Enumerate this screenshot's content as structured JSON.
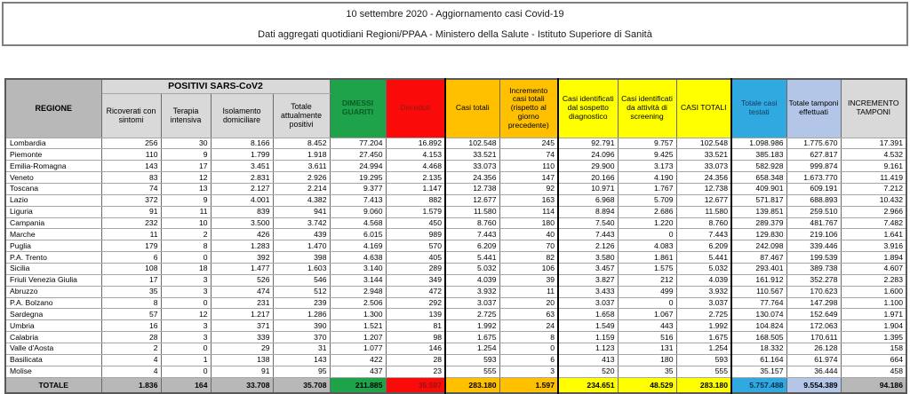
{
  "title": {
    "line1": "10 settembre 2020 - Aggiornamento casi Covid-19",
    "line2": "Dati aggregati quotidiani Regioni/PPAA - Ministero della Salute - Istituto Superiore di Sanità"
  },
  "table": {
    "region_header": "REGIONE",
    "group_header": "POSITIVI SARS-CoV2",
    "sub_headers": [
      "Ricoverati con sintomi",
      "Terapia intensiva",
      "Isolamento domiciliare",
      "Totale attualmente positivi"
    ],
    "col_headers": [
      "DIMESSI GUARITI",
      "Deceduti",
      "Casi totali",
      "Incremento casi totali (rispetto al giorno precedente)",
      "Casi identificati dal sospetto diagnostico",
      "Casi identificati da attività di screening",
      "CASI TOTALI",
      "Totale casi testati",
      "Totale tamponi effettuati",
      "INCREMENTO TAMPONI"
    ],
    "rows": [
      {
        "region": "Lombardia",
        "values": [
          "256",
          "30",
          "8.166",
          "8.452",
          "77.204",
          "16.892",
          "102.548",
          "245",
          "92.791",
          "9.757",
          "102.548",
          "1.098.986",
          "1.775.670",
          "17.391"
        ]
      },
      {
        "region": "Piemonte",
        "values": [
          "110",
          "9",
          "1.799",
          "1.918",
          "27.450",
          "4.153",
          "33.521",
          "74",
          "24.096",
          "9.425",
          "33.521",
          "385.183",
          "627.817",
          "4.532"
        ]
      },
      {
        "region": "Emilia-Romagna",
        "values": [
          "143",
          "17",
          "3.451",
          "3.611",
          "24.994",
          "4.468",
          "33.073",
          "110",
          "29.900",
          "3.173",
          "33.073",
          "582.928",
          "999.874",
          "9.161"
        ]
      },
      {
        "region": "Veneto",
        "values": [
          "83",
          "12",
          "2.831",
          "2.926",
          "19.295",
          "2.135",
          "24.356",
          "147",
          "20.166",
          "4.190",
          "24.356",
          "658.348",
          "1.673.770",
          "11.419"
        ]
      },
      {
        "region": "Toscana",
        "values": [
          "74",
          "13",
          "2.127",
          "2.214",
          "9.377",
          "1.147",
          "12.738",
          "92",
          "10.971",
          "1.767",
          "12.738",
          "409.901",
          "609.191",
          "7.212"
        ]
      },
      {
        "region": "Lazio",
        "values": [
          "372",
          "9",
          "4.001",
          "4.382",
          "7.413",
          "882",
          "12.677",
          "163",
          "6.968",
          "5.709",
          "12.677",
          "571.817",
          "688.893",
          "10.432"
        ]
      },
      {
        "region": "Liguria",
        "values": [
          "91",
          "11",
          "839",
          "941",
          "9.060",
          "1.579",
          "11.580",
          "114",
          "8.894",
          "2.686",
          "11.580",
          "139.851",
          "259.510",
          "2.966"
        ]
      },
      {
        "region": "Campania",
        "values": [
          "232",
          "10",
          "3.500",
          "3.742",
          "4.568",
          "450",
          "8.760",
          "180",
          "7.540",
          "1.220",
          "8.760",
          "289.379",
          "481.767",
          "7.482"
        ]
      },
      {
        "region": "Marche",
        "values": [
          "11",
          "2",
          "426",
          "439",
          "6.015",
          "989",
          "7.443",
          "40",
          "7.443",
          "0",
          "7.443",
          "129.830",
          "219.106",
          "1.641"
        ]
      },
      {
        "region": "Puglia",
        "values": [
          "179",
          "8",
          "1.283",
          "1.470",
          "4.169",
          "570",
          "6.209",
          "70",
          "2.126",
          "4.083",
          "6.209",
          "242.098",
          "339.446",
          "3.916"
        ]
      },
      {
        "region": "P.A. Trento",
        "values": [
          "6",
          "0",
          "392",
          "398",
          "4.638",
          "405",
          "5.441",
          "82",
          "3.580",
          "1.861",
          "5.441",
          "87.467",
          "199.539",
          "1.894"
        ]
      },
      {
        "region": "Sicilia",
        "values": [
          "108",
          "18",
          "1.477",
          "1.603",
          "3.140",
          "289",
          "5.032",
          "106",
          "3.457",
          "1.575",
          "5.032",
          "293.401",
          "389.738",
          "4.607"
        ]
      },
      {
        "region": "Friuli Venezia Giulia",
        "values": [
          "17",
          "3",
          "526",
          "546",
          "3.144",
          "349",
          "4.039",
          "39",
          "3.827",
          "212",
          "4.039",
          "161.912",
          "352.278",
          "2.283"
        ]
      },
      {
        "region": "Abruzzo",
        "values": [
          "35",
          "3",
          "474",
          "512",
          "2.948",
          "472",
          "3.932",
          "11",
          "3.433",
          "499",
          "3.932",
          "110.567",
          "170.623",
          "1.600"
        ]
      },
      {
        "region": "P.A. Bolzano",
        "values": [
          "8",
          "0",
          "231",
          "239",
          "2.506",
          "292",
          "3.037",
          "20",
          "3.037",
          "0",
          "3.037",
          "77.764",
          "147.298",
          "1.100"
        ]
      },
      {
        "region": "Sardegna",
        "values": [
          "57",
          "12",
          "1.217",
          "1.286",
          "1.300",
          "139",
          "2.725",
          "63",
          "1.658",
          "1.067",
          "2.725",
          "130.074",
          "152.649",
          "1.971"
        ]
      },
      {
        "region": "Umbria",
        "values": [
          "16",
          "3",
          "371",
          "390",
          "1.521",
          "81",
          "1.992",
          "24",
          "1.549",
          "443",
          "1.992",
          "104.824",
          "172.063",
          "1.904"
        ]
      },
      {
        "region": "Calabria",
        "values": [
          "28",
          "3",
          "339",
          "370",
          "1.207",
          "98",
          "1.675",
          "8",
          "1.159",
          "516",
          "1.675",
          "168.505",
          "170.611",
          "1.395"
        ]
      },
      {
        "region": "Valle d'Aosta",
        "values": [
          "2",
          "0",
          "29",
          "31",
          "1.077",
          "146",
          "1.254",
          "0",
          "1.123",
          "131",
          "1.254",
          "18.332",
          "26.128",
          "158"
        ]
      },
      {
        "region": "Basilicata",
        "values": [
          "4",
          "1",
          "138",
          "143",
          "422",
          "28",
          "593",
          "6",
          "413",
          "180",
          "593",
          "61.164",
          "61.974",
          "664"
        ]
      },
      {
        "region": "Molise",
        "values": [
          "4",
          "0",
          "91",
          "95",
          "437",
          "23",
          "555",
          "3",
          "520",
          "35",
          "555",
          "35.157",
          "36.444",
          "458"
        ]
      }
    ],
    "total_row": {
      "label": "TOTALE",
      "values": [
        "1.836",
        "164",
        "33.708",
        "35.708",
        "211.885",
        "35.587",
        "283.180",
        "1.597",
        "234.651",
        "48.529",
        "283.180",
        "5.757.488",
        "9.554.389",
        "94.186"
      ]
    }
  },
  "colors": {
    "green": "#1fa34a",
    "green_text": "#0a5a28",
    "red": "#fb0a0a",
    "red_text": "#8e1a12",
    "orange": "#ffc000",
    "yellow": "#ffff00",
    "blue": "#2fa9e0",
    "blue_text": "#17375e",
    "light_blue": "#b4c6e7",
    "gray_header": "#b8b8b8",
    "gray_light": "#d9d9d9"
  }
}
